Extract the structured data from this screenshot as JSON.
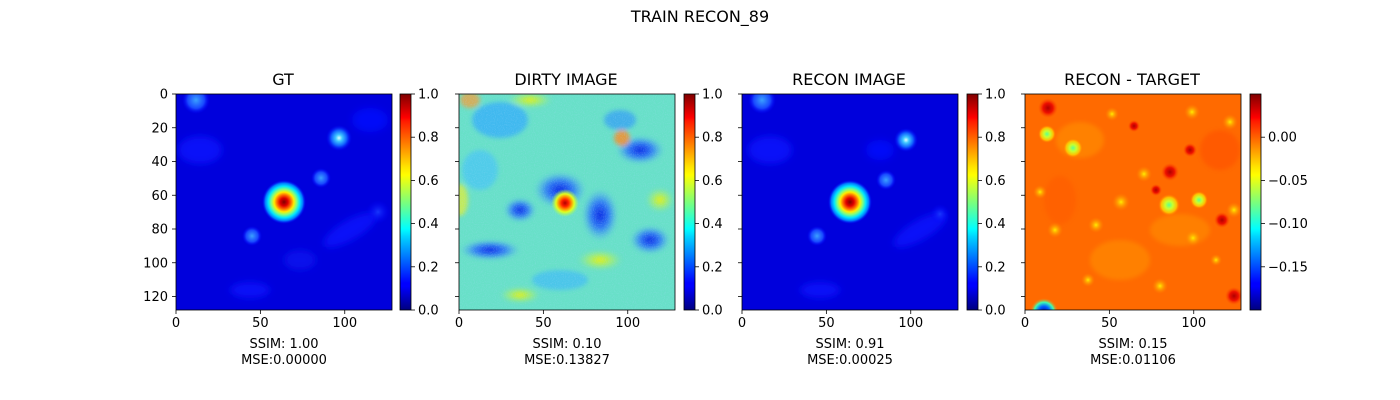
{
  "figure": {
    "title": "TRAIN RECON_89"
  },
  "panels": [
    {
      "title": "GT",
      "caption_ssim": "SSIM: 1.00",
      "caption_mse": "MSE:0.00000"
    },
    {
      "title": "DIRTY IMAGE",
      "caption_ssim": "SSIM: 0.10",
      "caption_mse": "MSE:0.13827"
    },
    {
      "title": "RECON IMAGE",
      "caption_ssim": "SSIM: 0.91",
      "caption_mse": "MSE:0.00025"
    },
    {
      "title": "RECON - TARGET",
      "caption_ssim": "SSIM: 0.15",
      "caption_mse": "MSE:0.01106"
    }
  ],
  "chart_data": [
    {
      "type": "heatmap",
      "title": "GT",
      "colormap": "jet",
      "xlim": [
        0,
        128
      ],
      "ylim": [
        128,
        0
      ],
      "xticks": [
        0,
        50,
        100
      ],
      "yticks": [
        0,
        20,
        40,
        60,
        80,
        100,
        120
      ],
      "clim": [
        0,
        1
      ],
      "colorbar_ticks": [
        "0.0",
        "0.2",
        "0.4",
        "0.6",
        "0.8",
        "1.0"
      ],
      "bright_source": {
        "x": 64,
        "y": 64,
        "value": 1.0
      },
      "faint_sources": [
        {
          "x": 97,
          "y": 27,
          "value": 0.4
        },
        {
          "x": 86,
          "y": 50,
          "value": 0.3
        },
        {
          "x": 45,
          "y": 84,
          "value": 0.25
        },
        {
          "x": 12,
          "y": 4,
          "value": 0.25
        },
        {
          "x": 118,
          "y": 72,
          "value": 0.15
        }
      ],
      "annotation": "SSIM: 1.00 MSE:0.00000"
    },
    {
      "type": "heatmap",
      "title": "DIRTY IMAGE",
      "colormap": "jet",
      "xlim": [
        0,
        128
      ],
      "ylim": [
        128,
        0
      ],
      "xticks": [
        0,
        50,
        100
      ],
      "clim": [
        0,
        1
      ],
      "colorbar_ticks": [
        "0.0",
        "0.2",
        "0.4",
        "0.6",
        "0.8",
        "1.0"
      ],
      "bright_source": {
        "x": 63,
        "y": 64,
        "value": 1.0
      },
      "background_level": 0.45,
      "noise": "high",
      "annotation": "SSIM: 0.10 MSE:0.13827"
    },
    {
      "type": "heatmap",
      "title": "RECON IMAGE",
      "colormap": "jet",
      "xlim": [
        0,
        128
      ],
      "ylim": [
        128,
        0
      ],
      "xticks": [
        0,
        50,
        100
      ],
      "clim": [
        0,
        1
      ],
      "colorbar_ticks": [
        "0.0",
        "0.2",
        "0.4",
        "0.6",
        "0.8",
        "1.0"
      ],
      "bright_source": {
        "x": 64,
        "y": 64,
        "value": 1.0
      },
      "faint_sources": [
        {
          "x": 97,
          "y": 27,
          "value": 0.4
        },
        {
          "x": 85,
          "y": 50,
          "value": 0.25
        },
        {
          "x": 45,
          "y": 84,
          "value": 0.25
        },
        {
          "x": 12,
          "y": 4,
          "value": 0.25
        }
      ],
      "annotation": "SSIM: 0.91 MSE:0.00025"
    },
    {
      "type": "heatmap",
      "title": "RECON - TARGET",
      "colormap": "jet",
      "xlim": [
        0,
        128
      ],
      "ylim": [
        128,
        0
      ],
      "xticks": [
        0,
        50,
        100
      ],
      "clim": [
        -0.2,
        0.05
      ],
      "colorbar_ticks": [
        "0.00",
        "−0.05",
        "−0.10",
        "−0.15"
      ],
      "colorbar_tick_values": [
        0.0,
        -0.05,
        -0.1,
        -0.15
      ],
      "annotation": "SSIM: 0.15 MSE:0.01106"
    }
  ]
}
